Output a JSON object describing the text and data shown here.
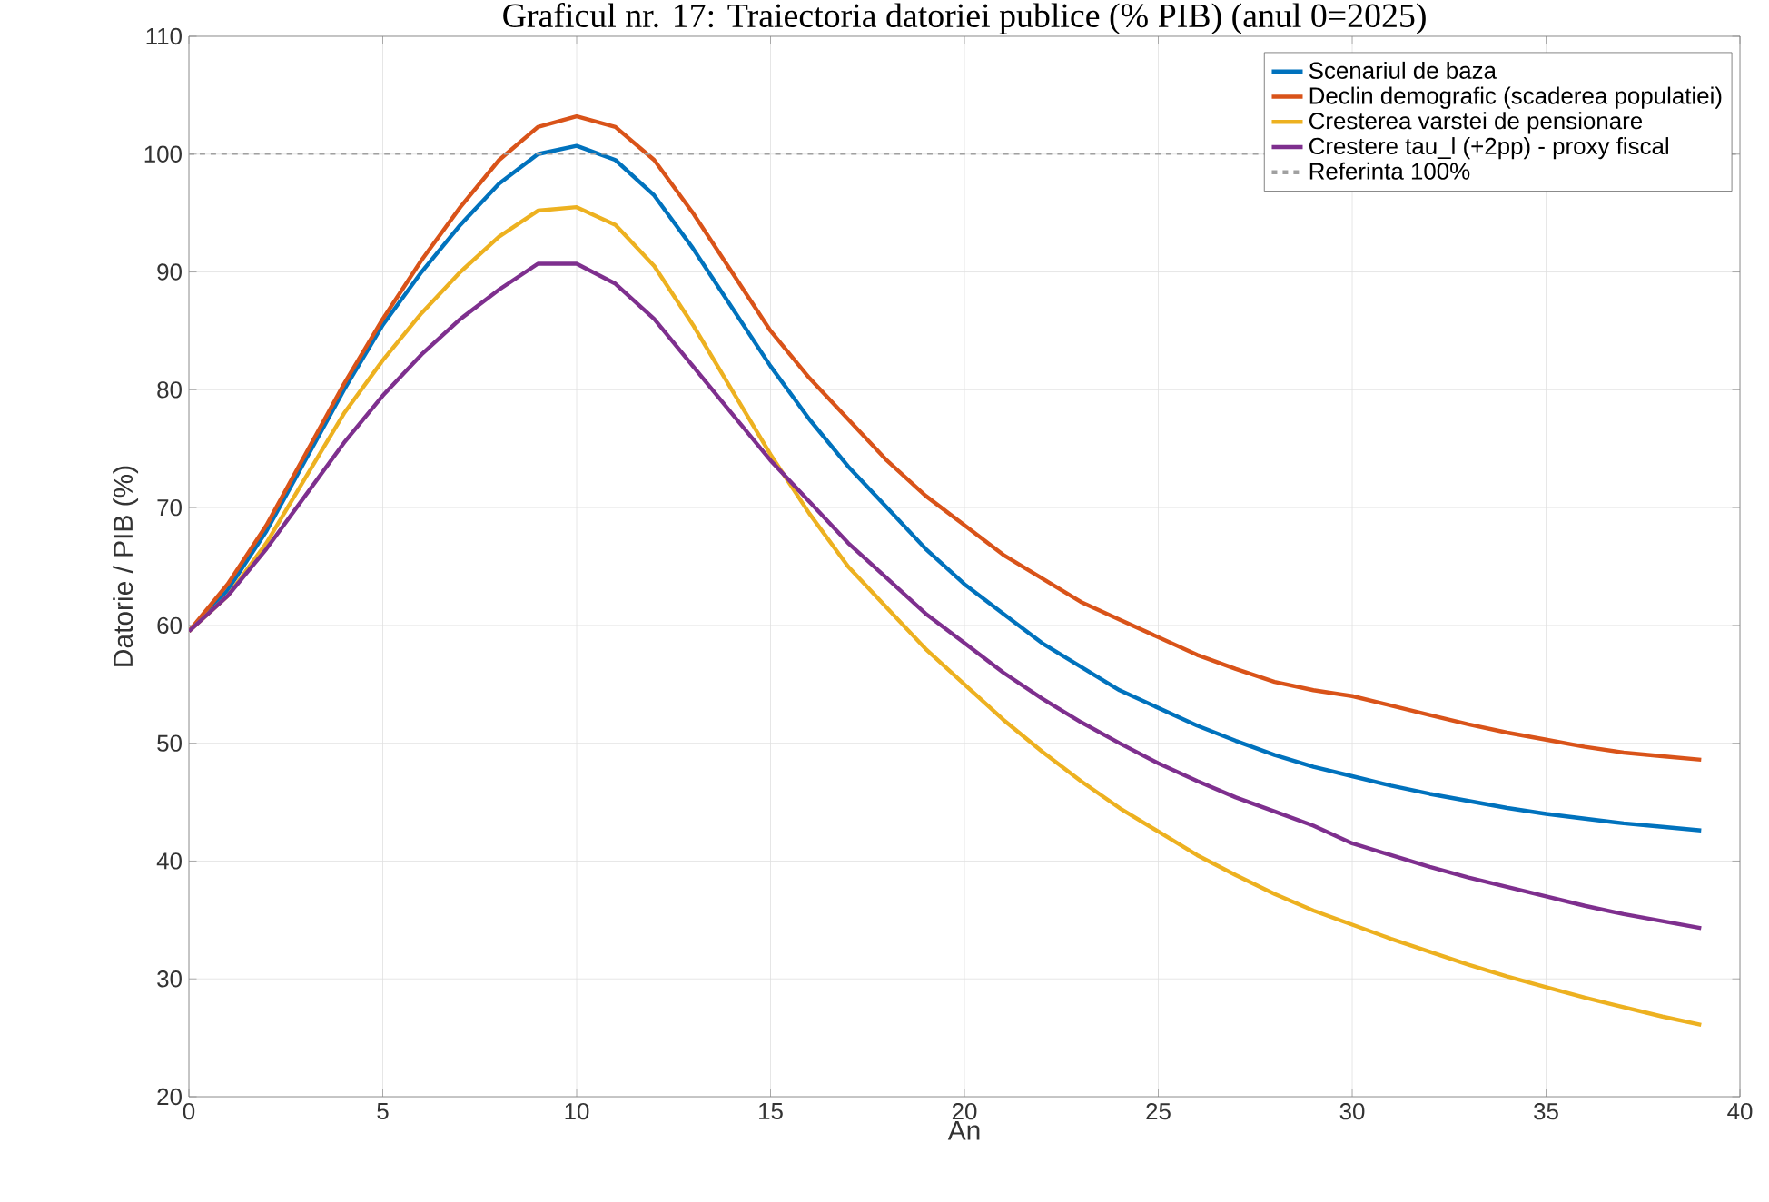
{
  "chart_data": {
    "type": "line",
    "title": "Graficul nr. 17: Traiectoria datoriei publice (% PIB) (anul 0=2025)",
    "xlabel": "An",
    "ylabel": "Datorie / PIB (%)",
    "x": [
      0,
      1,
      2,
      3,
      4,
      5,
      6,
      7,
      8,
      9,
      10,
      11,
      12,
      13,
      14,
      15,
      16,
      17,
      18,
      19,
      20,
      21,
      22,
      23,
      24,
      25,
      26,
      27,
      28,
      29,
      30,
      31,
      32,
      33,
      34,
      35,
      36,
      37,
      38,
      39
    ],
    "series": [
      {
        "name": "Scenariul de baza",
        "color": "#0072bd",
        "values": [
          59.5,
          63,
          68,
          74,
          80,
          85.5,
          90,
          94,
          97.5,
          100,
          100.7,
          99.5,
          96.5,
          92,
          87,
          82,
          77.5,
          73.5,
          70,
          66.5,
          63.5,
          61,
          58.5,
          56.5,
          54.5,
          53,
          51.5,
          50.2,
          49,
          48,
          47.2,
          46.4,
          45.7,
          45.1,
          44.5,
          44,
          43.6,
          43.2,
          42.9,
          42.6
        ]
      },
      {
        "name": "Declin demografic (scaderea populatiei)",
        "color": "#d95319",
        "values": [
          59.5,
          63.5,
          68.5,
          74.5,
          80.5,
          86,
          91,
          95.5,
          99.5,
          102.3,
          103.2,
          102.3,
          99.5,
          95,
          90,
          85,
          81,
          77.5,
          74,
          71,
          68.5,
          66,
          64,
          62,
          60.5,
          59,
          57.5,
          56.3,
          55.2,
          54.5,
          54,
          53.2,
          52.4,
          51.6,
          50.9,
          50.3,
          49.7,
          49.2,
          48.9,
          48.6
        ]
      },
      {
        "name": "Cresterea varstei de pensionare",
        "color": "#edb120",
        "values": [
          59.5,
          62.5,
          67,
          72.5,
          78,
          82.5,
          86.5,
          90,
          93,
          95.2,
          95.5,
          94,
          90.5,
          85.5,
          80,
          74.5,
          69.5,
          65,
          61.5,
          58,
          55,
          52,
          49.3,
          46.8,
          44.5,
          42.5,
          40.5,
          38.8,
          37.2,
          35.8,
          34.6,
          33.4,
          32.3,
          31.2,
          30.2,
          29.3,
          28.4,
          27.6,
          26.8,
          26.1
        ]
      },
      {
        "name": "Crestere tau_l (+2pp) - proxy fiscal",
        "color": "#7e2f8e",
        "values": [
          59.5,
          62.5,
          66.5,
          71,
          75.5,
          79.5,
          83,
          86,
          88.5,
          90.7,
          90.7,
          89,
          86,
          82,
          78,
          74,
          70.5,
          67,
          64,
          61,
          58.5,
          56,
          53.8,
          51.8,
          50,
          48.3,
          46.8,
          45.4,
          44.2,
          43,
          41.5,
          40.5,
          39.5,
          38.6,
          37.8,
          37,
          36.2,
          35.5,
          34.9,
          34.3
        ]
      }
    ],
    "ref_lines": [
      {
        "axis": "y",
        "value": 100,
        "label": "Referinta 100%",
        "color": "#a0a0a0",
        "line_style": "dashed"
      }
    ],
    "xlim": [
      0,
      40
    ],
    "ylim": [
      20,
      110
    ],
    "xticks": [
      0,
      5,
      10,
      15,
      20,
      25,
      30,
      35,
      40
    ],
    "yticks": [
      20,
      30,
      40,
      50,
      60,
      70,
      80,
      90,
      100,
      110
    ],
    "grid": true,
    "legend": "top right",
    "line_style": "solid",
    "marker": "none"
  }
}
